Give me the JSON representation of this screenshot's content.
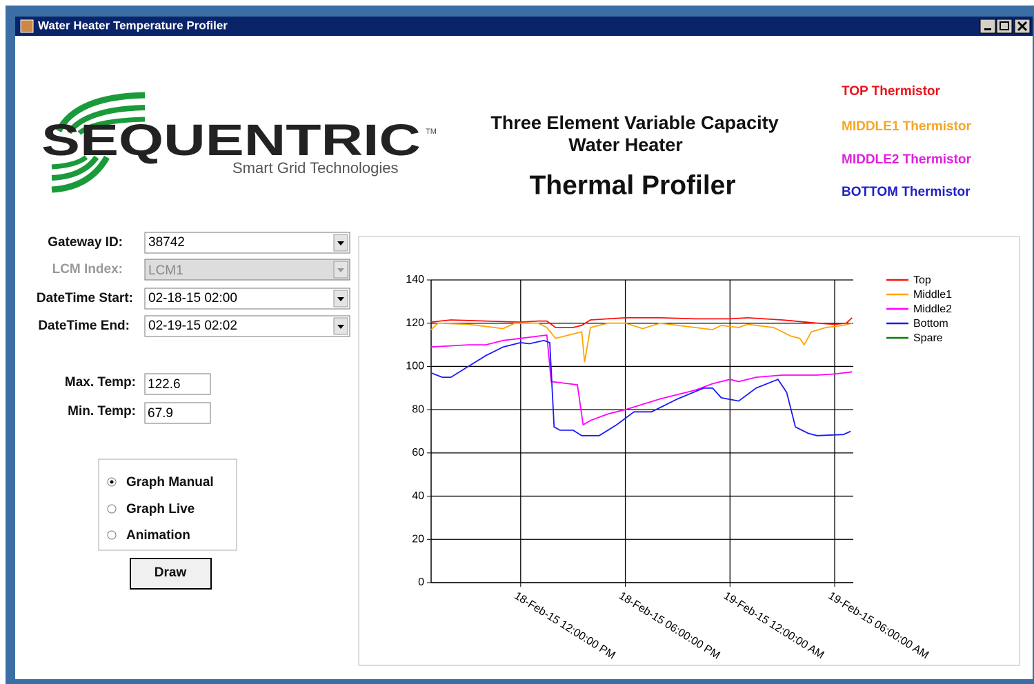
{
  "window": {
    "title": "Water Heater Temperature Profiler"
  },
  "logo": {
    "name": "SEQUENTRIC",
    "tm": "TM",
    "tagline": "Smart Grid Technologies"
  },
  "header": {
    "line1": "Three Element Variable Capacity",
    "line2": "Water Heater",
    "title": "Thermal Profiler"
  },
  "thermistors": [
    {
      "label": "TOP Thermistor",
      "color": "#e8141c"
    },
    {
      "label": "MIDDLE1 Thermistor",
      "color": "#f5a623"
    },
    {
      "label": "MIDDLE2 Thermistor",
      "color": "#e020e0"
    },
    {
      "label": "BOTTOM Thermistor",
      "color": "#2020c8"
    }
  ],
  "form": {
    "fields": [
      {
        "label": "Gateway ID:",
        "value": "38742",
        "enabled": true
      },
      {
        "label": "LCM Index:",
        "value": "LCM1",
        "enabled": false
      },
      {
        "label": "DateTime Start:",
        "value": "02-18-15 02:00",
        "enabled": true
      },
      {
        "label": "DateTime End:",
        "value": "02-19-15 02:02",
        "enabled": true
      }
    ],
    "temps": [
      {
        "label": "Max. Temp:",
        "value": "122.6"
      },
      {
        "label": "Min. Temp:",
        "value": "67.9"
      }
    ],
    "modes": [
      "Graph Manual",
      "Graph Live",
      "Animation"
    ],
    "selected_mode": 0,
    "button": "Draw"
  },
  "chart_data": {
    "type": "line",
    "xlim": [
      "2015-02-18T06:52",
      "2015-02-19T07:04"
    ],
    "xticks": [
      {
        "value": "2015-02-18T12:00",
        "label": "18-Feb-15 12:00:00 PM"
      },
      {
        "value": "2015-02-18T18:00",
        "label": "18-Feb-15 06:00:00 PM"
      },
      {
        "value": "2015-02-19T00:00",
        "label": "19-Feb-15 12:00:00 AM"
      },
      {
        "value": "2015-02-19T06:00",
        "label": "19-Feb-15 06:00:00 AM"
      }
    ],
    "ylim": [
      0,
      140
    ],
    "yticks": [
      0,
      20,
      40,
      60,
      80,
      100,
      120,
      140
    ],
    "grid": true,
    "legend": "right",
    "series": [
      {
        "name": "Top",
        "color": "#ff1010",
        "x": [
          "2015-02-18T06:52",
          "2015-02-18T08:00",
          "2015-02-18T10:00",
          "2015-02-18T12:00",
          "2015-02-18T13:00",
          "2015-02-18T13:30",
          "2015-02-18T14:00",
          "2015-02-18T15:00",
          "2015-02-18T15:30",
          "2015-02-18T16:00",
          "2015-02-18T17:00",
          "2015-02-18T18:00",
          "2015-02-18T20:00",
          "2015-02-18T22:00",
          "2015-02-19T00:00",
          "2015-02-19T01:00",
          "2015-02-19T03:00",
          "2015-02-19T05:00",
          "2015-02-19T06:00",
          "2015-02-19T06:40",
          "2015-02-19T07:00"
        ],
        "values": [
          120.5,
          121.5,
          121,
          120.5,
          121,
          121,
          118,
          118,
          119,
          121.5,
          122,
          122.5,
          122.5,
          122,
          122,
          122.5,
          121.5,
          120,
          119.5,
          120,
          122.5
        ]
      },
      {
        "name": "Middle1",
        "color": "#ffa500",
        "x": [
          "2015-02-18T06:52",
          "2015-02-18T07:15",
          "2015-02-18T09:00",
          "2015-02-18T11:00",
          "2015-02-18T11:40",
          "2015-02-18T13:00",
          "2015-02-18T13:30",
          "2015-02-18T14:00",
          "2015-02-18T15:00",
          "2015-02-18T15:30",
          "2015-02-18T15:40",
          "2015-02-18T16:00",
          "2015-02-18T17:00",
          "2015-02-18T18:00",
          "2015-02-18T19:00",
          "2015-02-18T20:00",
          "2015-02-18T21:00",
          "2015-02-18T23:00",
          "2015-02-18T23:30",
          "2015-02-19T00:30",
          "2015-02-19T01:00",
          "2015-02-19T02:30",
          "2015-02-19T03:30",
          "2015-02-19T04:00",
          "2015-02-19T04:15",
          "2015-02-19T04:40",
          "2015-02-19T05:30",
          "2015-02-19T06:30",
          "2015-02-19T07:00"
        ],
        "values": [
          117,
          120,
          119.5,
          117.5,
          120,
          120,
          118,
          113,
          115,
          116,
          102,
          118,
          120,
          120,
          117.5,
          120,
          119,
          117,
          119,
          118,
          119.5,
          118,
          114,
          113,
          110,
          116,
          118,
          119,
          120
        ]
      },
      {
        "name": "Middle2",
        "color": "#ff00ff",
        "x": [
          "2015-02-18T06:52",
          "2015-02-18T09:00",
          "2015-02-18T10:00",
          "2015-02-18T11:00",
          "2015-02-18T12:00",
          "2015-02-18T13:00",
          "2015-02-18T13:30",
          "2015-02-18T13:45",
          "2015-02-18T14:45",
          "2015-02-18T15:15",
          "2015-02-18T15:35",
          "2015-02-18T16:00",
          "2015-02-18T17:00",
          "2015-02-18T18:00",
          "2015-02-18T20:00",
          "2015-02-18T22:00",
          "2015-02-18T23:00",
          "2015-02-19T00:00",
          "2015-02-19T00:30",
          "2015-02-19T01:30",
          "2015-02-19T03:00",
          "2015-02-19T04:00",
          "2015-02-19T05:00",
          "2015-02-19T06:00",
          "2015-02-19T07:00"
        ],
        "values": [
          109,
          110,
          110,
          112,
          113,
          114,
          114.5,
          93,
          92,
          91.5,
          73,
          75,
          78,
          80,
          85,
          89,
          92,
          94,
          93,
          95,
          96,
          96,
          96,
          96.5,
          97.5
        ]
      },
      {
        "name": "Bottom",
        "color": "#1a1aff",
        "x": [
          "2015-02-18T06:52",
          "2015-02-18T07:30",
          "2015-02-18T08:00",
          "2015-02-18T09:00",
          "2015-02-18T10:00",
          "2015-02-18T11:00",
          "2015-02-18T12:00",
          "2015-02-18T12:30",
          "2015-02-18T13:20",
          "2015-02-18T13:40",
          "2015-02-18T13:55",
          "2015-02-18T14:15",
          "2015-02-18T15:00",
          "2015-02-18T15:30",
          "2015-02-18T16:30",
          "2015-02-18T17:30",
          "2015-02-18T18:30",
          "2015-02-18T19:30",
          "2015-02-18T21:00",
          "2015-02-18T22:30",
          "2015-02-18T23:00",
          "2015-02-18T23:30",
          "2015-02-19T00:30",
          "2015-02-19T01:30",
          "2015-02-19T02:45",
          "2015-02-19T03:15",
          "2015-02-19T03:45",
          "2015-02-19T04:30",
          "2015-02-19T05:00",
          "2015-02-19T06:30",
          "2015-02-19T06:55"
        ],
        "values": [
          97,
          95,
          95,
          100,
          105,
          109,
          111,
          110.5,
          112,
          111,
          72,
          70.5,
          70.5,
          68,
          68,
          73,
          79,
          79,
          85,
          90,
          90,
          85.5,
          84,
          90,
          94,
          88,
          72,
          69,
          68,
          68.5,
          70
        ]
      },
      {
        "name": "Spare",
        "color": "#008000",
        "x": [],
        "values": []
      }
    ]
  }
}
